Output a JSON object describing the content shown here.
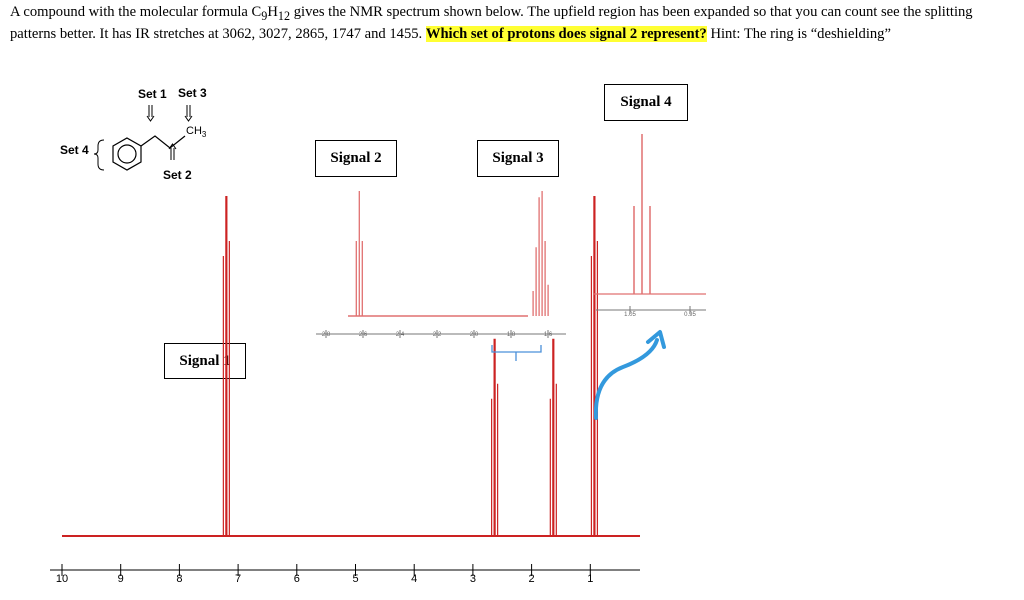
{
  "question": {
    "part1": "A compound with the molecular formula C",
    "sub9": "9",
    "h": "H",
    "sub12": "12",
    "part2": " gives the NMR spectrum shown below.  The upfield region has been expanded so that you can count see the splitting patterns better.  It has IR stretches at 3062, 3027, 2865, 1747 and 1455.  ",
    "highlight": "Which set of protons does signal 2 represent?",
    "hint": "  Hint: The ring is “deshielding”"
  },
  "molecule": {
    "set1": "Set 1",
    "set2": "Set 2",
    "set3": "Set 3",
    "set4": "Set 4",
    "ch3": "CH",
    "ch3_sub": "3"
  },
  "signals": {
    "s1": "Signal 1",
    "s2": "Signal 2",
    "s3": "Signal 3",
    "s4": "Signal 4"
  },
  "colors": {
    "spectrum": "#cc2222",
    "inset": "#e07070",
    "arrow": "#3399dd",
    "highlight": "#ffff33"
  },
  "chart_data": [
    {
      "type": "line",
      "title": "",
      "xlabel": "",
      "ylabel": "",
      "x_ticks": [
        "10",
        "9",
        "8",
        "7",
        "6",
        "5",
        "4",
        "3",
        "2",
        "1"
      ],
      "xlim": [
        10,
        1
      ],
      "x_reversed": true,
      "peaks": [
        {
          "label": "Signal 1",
          "ppm": 7.2,
          "height": 1.0
        },
        {
          "label": "Signal 2",
          "ppm": 2.63,
          "height": 0.58
        },
        {
          "label": "Signal 3",
          "ppm": 1.63,
          "height": 0.58
        },
        {
          "label": "Signal 4",
          "ppm": 0.93,
          "height": 1.0
        }
      ]
    },
    {
      "type": "line",
      "title": "",
      "inset_of": "upfield expansion",
      "x_ticks": [
        "2.8",
        "2.6",
        "2.4",
        "2.2",
        "2.0",
        "1.8",
        "1.6"
      ],
      "peaks": [
        {
          "label": "Signal 2",
          "ppm": 2.62,
          "multiplicity": "triplet"
        },
        {
          "label": "Signal 3",
          "ppm": 1.64,
          "multiplicity": "sextet"
        }
      ]
    },
    {
      "type": "line",
      "title": "",
      "inset_of": "Signal 4 expansion",
      "x_ticks": [
        "1.05",
        "0.95"
      ],
      "peaks": [
        {
          "label": "Signal 4",
          "ppm": 0.93,
          "multiplicity": "triplet"
        }
      ]
    }
  ]
}
